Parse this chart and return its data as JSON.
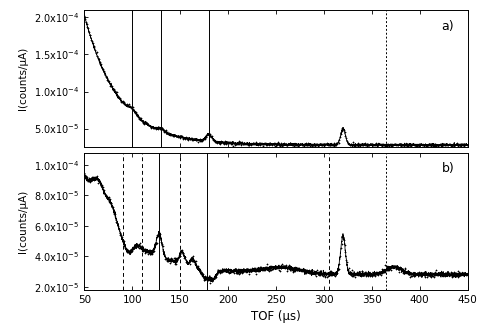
{
  "xlim": [
    50,
    450
  ],
  "panel_a": {
    "ylim": [
      2.5e-05,
      0.00021
    ],
    "yticks": [
      5e-05,
      0.0001,
      0.00015,
      0.0002
    ],
    "label": "a)",
    "solid_lines": [
      100,
      130,
      180
    ],
    "dotted_lines": [
      365
    ]
  },
  "panel_b": {
    "ylim": [
      1.8e-05,
      0.000108
    ],
    "yticks": [
      2e-05,
      4e-05,
      6e-05,
      8e-05,
      0.0001
    ],
    "label": "b)",
    "solid_lines": [
      128,
      178
    ],
    "dashed_lines": [
      90,
      110,
      150,
      305
    ],
    "dotted_lines": [
      365
    ]
  },
  "xlabel": "TOF (μs)",
  "ylabel": "I(counts/μA)",
  "xticks": [
    50,
    100,
    150,
    200,
    250,
    300,
    350,
    400,
    450
  ]
}
